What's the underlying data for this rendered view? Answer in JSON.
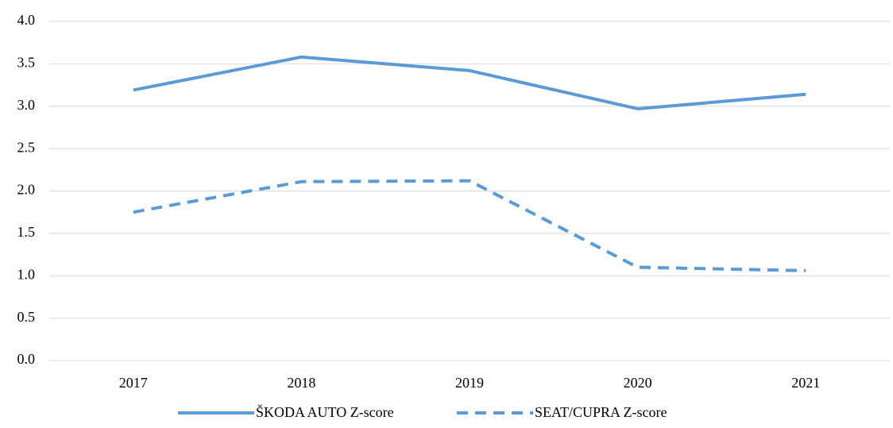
{
  "chart_data": {
    "type": "line",
    "categories": [
      "2017",
      "2018",
      "2019",
      "2020",
      "2021"
    ],
    "series": [
      {
        "name": "ŠKODA AUTO Z-score",
        "color": "#5b9bd5",
        "dash": false,
        "values": [
          3.19,
          3.58,
          3.42,
          2.97,
          3.14
        ]
      },
      {
        "name": "SEAT/CUPRA Z-score",
        "color": "#5b9bd5",
        "dash": true,
        "values": [
          1.75,
          2.11,
          2.12,
          1.1,
          1.06
        ]
      }
    ],
    "ylim": [
      0,
      4
    ],
    "yticks": [
      {
        "value": 0,
        "label": "0.0"
      },
      0.5,
      {
        "value": 1,
        "label": "1.0"
      },
      1.5,
      {
        "value": 2,
        "label": "2.0"
      },
      2.5,
      {
        "value": 3,
        "label": "3.0"
      },
      3.5,
      {
        "value": 4,
        "label": "4.0"
      }
    ],
    "grid": true,
    "legend": "bottom"
  }
}
